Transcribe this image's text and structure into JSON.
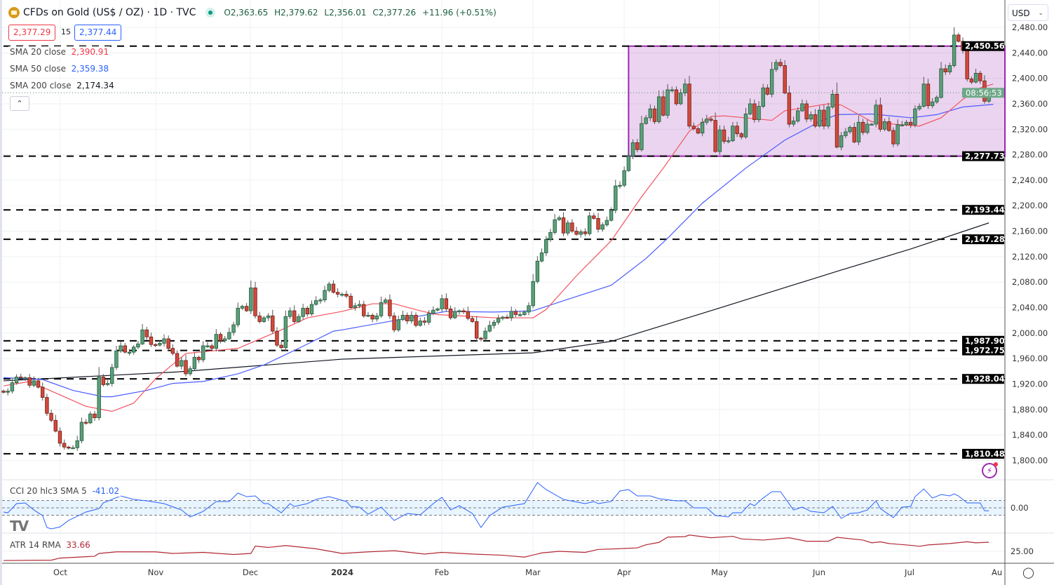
{
  "header": {
    "title": "CFDs on Gold (US$ / OZ) · 1D · TVC",
    "open": "O2,363.65",
    "high": "H2,379.62",
    "low": "L2,356.01",
    "close": "C2,377.26",
    "change": "+11.96 (+0.51%)",
    "sell_price": "2,377.29",
    "spread": "15",
    "buy_price": "2,377.44"
  },
  "indicators": {
    "sma20": {
      "label": "SMA 20 close",
      "value": "2,390.91",
      "color": "#f23645"
    },
    "sma50": {
      "label": "SMA 50 close",
      "value": "2,359.38",
      "color": "#2962ff"
    },
    "sma200": {
      "label": "SMA 200 close",
      "value": "2,174.34",
      "color": "#131722"
    },
    "cci": {
      "label": "CCI 20 hlc3 SMA 5",
      "value": "-41.02",
      "color": "#2962ff",
      "axis_label": "0.00"
    },
    "atr": {
      "label": "ATR 14 RMA",
      "value": "33.66",
      "color": "#b22833",
      "axis_label": "25.00"
    }
  },
  "currency": "USD",
  "countdown": "08:56:53",
  "x_axis": [
    "Oct",
    "Nov",
    "Dec",
    "2024",
    "Feb",
    "Mar",
    "Apr",
    "May",
    "Jun",
    "Jul",
    "Au"
  ],
  "chart_data": {
    "type": "candlestick",
    "ylim": [
      1800,
      2480
    ],
    "y_ticks": [
      "2,480.00",
      "2,440.00",
      "2,400.00",
      "2,360.00",
      "2,320.00",
      "2,280.00",
      "2,240.00",
      "2,200.00",
      "2,160.00",
      "2,120.00",
      "2,080.00",
      "2,040.00",
      "2,000.00",
      "1,960.00",
      "1,920.00",
      "1,880.00",
      "1,840.00",
      "1,800.00"
    ],
    "colors": {
      "up": "#5b9f7a",
      "down": "#d2493b",
      "box": "#9c27b0"
    },
    "closes": [
      1907,
      1909,
      1922,
      1931,
      1930,
      1930,
      1918,
      1925,
      1915,
      1899,
      1874,
      1863,
      1846,
      1827,
      1821,
      1820,
      1820,
      1831,
      1860,
      1859,
      1873,
      1867,
      1931,
      1919,
      1921,
      1946,
      1972,
      1980,
      1970,
      1970,
      1978,
      1983,
      2005,
      1994,
      1982,
      1981,
      1984,
      1991,
      1976,
      1968,
      1948,
      1957,
      1936,
      1944,
      1962,
      1958,
      1980,
      1980,
      1976,
      1998,
      1988,
      1991,
      2001,
      2013,
      2039,
      2042,
      2035,
      2071,
      2027,
      2018,
      2024,
      2027,
      2003,
      1981,
      1977,
      2026,
      2035,
      2018,
      2026,
      2039,
      2030,
      2045,
      2051,
      2052,
      2067,
      2077,
      2064,
      2061,
      2061,
      2058,
      2040,
      2043,
      2045,
      2027,
      2028,
      2022,
      2027,
      2048,
      2052,
      2027,
      2005,
      2021,
      2028,
      2019,
      2028,
      2012,
      2019,
      2017,
      2031,
      2036,
      2038,
      2054,
      2038,
      2024,
      2034,
      2035,
      2034,
      2023,
      2018,
      1992,
      1991,
      2003,
      2012,
      2017,
      2023,
      2025,
      2024,
      2034,
      2029,
      2029,
      2033,
      2043,
      2081,
      2113,
      2126,
      2147,
      2158,
      2178,
      2181,
      2157,
      2173,
      2160,
      2155,
      2159,
      2156,
      2184,
      2180,
      2163,
      2170,
      2177,
      2193,
      2231,
      2232,
      2255,
      2278,
      2299,
      2288,
      2329,
      2338,
      2352,
      2332,
      2371,
      2342,
      2382,
      2382,
      2360,
      2377,
      2391,
      2325,
      2321,
      2314,
      2331,
      2336,
      2334,
      2285,
      2319,
      2301,
      2302,
      2325,
      2313,
      2308,
      2344,
      2360,
      2335,
      2356,
      2385,
      2375,
      2414,
      2425,
      2420,
      2377,
      2328,
      2333,
      2349,
      2360,
      2336,
      2343,
      2325,
      2350,
      2325,
      2355,
      2375,
      2292,
      2310,
      2316,
      2323,
      2300,
      2331,
      2315,
      2328,
      2328,
      2358,
      2320,
      2332,
      2318,
      2297,
      2327,
      2327,
      2331,
      2327,
      2352,
      2356,
      2391,
      2357,
      2363,
      2370,
      2415,
      2410,
      2420,
      2468,
      2458,
      2444,
      2399,
      2394,
      2408,
      2396,
      2364,
      2377.26
    ],
    "sma20": [
      [
        0,
        1917
      ],
      [
        6,
        1924
      ],
      [
        13,
        1903
      ],
      [
        19,
        1885
      ],
      [
        25,
        1877
      ],
      [
        30,
        1890
      ],
      [
        35,
        1928
      ],
      [
        42,
        1968
      ],
      [
        54,
        1976
      ],
      [
        64,
        2005
      ],
      [
        70,
        2024
      ],
      [
        78,
        2034
      ],
      [
        85,
        2046
      ],
      [
        90,
        2046
      ],
      [
        96,
        2035
      ],
      [
        100,
        2029
      ],
      [
        108,
        2026
      ],
      [
        113,
        2024
      ],
      [
        122,
        2024
      ],
      [
        125,
        2037
      ],
      [
        132,
        2090
      ],
      [
        140,
        2145
      ],
      [
        147,
        2214
      ],
      [
        152,
        2259
      ],
      [
        158,
        2317
      ],
      [
        163,
        2340
      ],
      [
        166,
        2341
      ],
      [
        177,
        2334
      ],
      [
        180,
        2349
      ],
      [
        190,
        2360
      ],
      [
        193,
        2358
      ],
      [
        200,
        2332
      ],
      [
        205,
        2328
      ],
      [
        211,
        2325
      ],
      [
        216,
        2338
      ],
      [
        221,
        2367
      ],
      [
        225,
        2385
      ],
      [
        228,
        2391
      ]
    ],
    "sma50": [
      [
        0,
        1930
      ],
      [
        9,
        1927
      ],
      [
        16,
        1910
      ],
      [
        23,
        1900
      ],
      [
        25,
        1900
      ],
      [
        33,
        1910
      ],
      [
        39,
        1921
      ],
      [
        46,
        1924
      ],
      [
        54,
        1936
      ],
      [
        60,
        1950
      ],
      [
        68,
        1976
      ],
      [
        76,
        2003
      ],
      [
        78,
        2005
      ],
      [
        87,
        2016
      ],
      [
        102,
        2034
      ],
      [
        113,
        2033
      ],
      [
        122,
        2035
      ],
      [
        130,
        2053
      ],
      [
        140,
        2075
      ],
      [
        148,
        2117
      ],
      [
        153,
        2149
      ],
      [
        161,
        2204
      ],
      [
        171,
        2259
      ],
      [
        180,
        2303
      ],
      [
        188,
        2332
      ],
      [
        192,
        2343
      ],
      [
        200,
        2344
      ],
      [
        209,
        2338
      ],
      [
        215,
        2343
      ],
      [
        221,
        2355
      ],
      [
        228,
        2359
      ]
    ],
    "sma200": [
      [
        0,
        1925
      ],
      [
        40,
        1939
      ],
      [
        78,
        1959
      ],
      [
        122,
        1969
      ],
      [
        140,
        1987
      ],
      [
        161,
        2031
      ],
      [
        193,
        2099
      ],
      [
        209,
        2132
      ],
      [
        227,
        2173
      ]
    ],
    "levels": [
      {
        "price": 2450.56,
        "label": "2,450.56"
      },
      {
        "price": 2277.73,
        "label": "2,277.73"
      },
      {
        "price": 2193.44,
        "label": "2,193.44"
      },
      {
        "price": 2147.28,
        "label": "2,147.28"
      },
      {
        "price": 1987.9,
        "label": "1,987.90"
      },
      {
        "price": 1972.75,
        "label": "1,972.75"
      },
      {
        "price": 1928.04,
        "label": "1,928.04"
      },
      {
        "price": 1810.48,
        "label": "1,810.48"
      }
    ],
    "range_box": {
      "from_bar": 144,
      "top": 2450.56,
      "bottom": 2277.73
    },
    "current_price": 2377.26,
    "cci": [
      [
        0,
        -57
      ],
      [
        1,
        -67
      ],
      [
        3,
        57
      ],
      [
        5,
        67
      ],
      [
        7,
        -29
      ],
      [
        9,
        -105
      ],
      [
        10,
        -267
      ],
      [
        11,
        -286
      ],
      [
        13,
        -260
      ],
      [
        15,
        -171
      ],
      [
        19,
        -57
      ],
      [
        22,
        -10
      ],
      [
        23,
        67
      ],
      [
        27,
        162
      ],
      [
        30,
        114
      ],
      [
        33,
        95
      ],
      [
        37,
        57
      ],
      [
        41,
        -29
      ],
      [
        43,
        -124
      ],
      [
        46,
        -48
      ],
      [
        49,
        86
      ],
      [
        52,
        86
      ],
      [
        54,
        200
      ],
      [
        56,
        152
      ],
      [
        58,
        162
      ],
      [
        60,
        57
      ],
      [
        61,
        57
      ],
      [
        64,
        -67
      ],
      [
        66,
        57
      ],
      [
        67,
        19
      ],
      [
        70,
        57
      ],
      [
        72,
        114
      ],
      [
        75,
        152
      ],
      [
        79,
        86
      ],
      [
        80,
        19
      ],
      [
        82,
        10
      ],
      [
        84,
        -86
      ],
      [
        87,
        10
      ],
      [
        90,
        -171
      ],
      [
        93,
        -76
      ],
      [
        96,
        -95
      ],
      [
        99,
        57
      ],
      [
        101,
        143
      ],
      [
        103,
        -29
      ],
      [
        105,
        29
      ],
      [
        108,
        -76
      ],
      [
        110,
        -267
      ],
      [
        112,
        -105
      ],
      [
        115,
        10
      ],
      [
        120,
        57
      ],
      [
        123,
        343
      ],
      [
        125,
        248
      ],
      [
        129,
        114
      ],
      [
        134,
        57
      ],
      [
        136,
        86
      ],
      [
        137,
        57
      ],
      [
        140,
        86
      ],
      [
        142,
        229
      ],
      [
        144,
        248
      ],
      [
        146,
        162
      ],
      [
        149,
        162
      ],
      [
        151,
        124
      ],
      [
        155,
        95
      ],
      [
        157,
        95
      ],
      [
        159,
        0
      ],
      [
        162,
        0
      ],
      [
        164,
        -105
      ],
      [
        167,
        -124
      ],
      [
        168,
        -67
      ],
      [
        170,
        -67
      ],
      [
        172,
        57
      ],
      [
        173,
        29
      ],
      [
        175,
        133
      ],
      [
        177,
        219
      ],
      [
        179,
        219
      ],
      [
        182,
        -29
      ],
      [
        184,
        10
      ],
      [
        186,
        -48
      ],
      [
        189,
        -67
      ],
      [
        191,
        19
      ],
      [
        193,
        -143
      ],
      [
        195,
        -76
      ],
      [
        197,
        -67
      ],
      [
        199,
        -29
      ],
      [
        201,
        95
      ],
      [
        202,
        -10
      ],
      [
        205,
        -133
      ],
      [
        207,
        10
      ],
      [
        209,
        19
      ],
      [
        210,
        152
      ],
      [
        212,
        257
      ],
      [
        214,
        133
      ],
      [
        216,
        181
      ],
      [
        218,
        162
      ],
      [
        219,
        190
      ],
      [
        220,
        162
      ],
      [
        222,
        67
      ],
      [
        225,
        67
      ],
      [
        226,
        -38
      ],
      [
        227,
        -41.02
      ]
    ],
    "atr": [
      [
        0,
        16.3
      ],
      [
        11,
        16.6
      ],
      [
        13,
        18.6
      ],
      [
        21,
        20.3
      ],
      [
        22,
        23
      ],
      [
        26,
        24.5
      ],
      [
        35,
        24.5
      ],
      [
        39,
        23
      ],
      [
        46,
        24
      ],
      [
        53,
        22
      ],
      [
        57,
        23
      ],
      [
        58,
        30
      ],
      [
        61,
        28.7
      ],
      [
        65,
        30.5
      ],
      [
        72,
        27.4
      ],
      [
        78,
        23
      ],
      [
        84,
        24.5
      ],
      [
        90,
        25.6
      ],
      [
        97,
        22.4
      ],
      [
        101,
        24
      ],
      [
        108,
        22.4
      ],
      [
        115,
        21.3
      ],
      [
        120,
        19.5
      ],
      [
        124,
        23.5
      ],
      [
        128,
        25
      ],
      [
        134,
        24
      ],
      [
        137,
        26.8
      ],
      [
        142,
        27.5
      ],
      [
        146,
        28.3
      ],
      [
        148,
        31.2
      ],
      [
        151,
        33.5
      ],
      [
        153,
        38.5
      ],
      [
        157,
        39
      ],
      [
        158,
        40.5
      ],
      [
        163,
        37.9
      ],
      [
        168,
        39.3
      ],
      [
        170,
        36.8
      ],
      [
        175,
        35.7
      ],
      [
        181,
        37.9
      ],
      [
        185,
        34.6
      ],
      [
        190,
        34.6
      ],
      [
        192,
        38.3
      ],
      [
        198,
        35.7
      ],
      [
        200,
        33.1
      ],
      [
        202,
        34
      ],
      [
        204,
        32.4
      ],
      [
        209,
        30.7
      ],
      [
        211,
        29.8
      ],
      [
        213,
        31.1
      ],
      [
        218,
        32.4
      ],
      [
        222,
        34.1
      ],
      [
        224,
        33.1
      ],
      [
        227,
        33.66
      ]
    ]
  }
}
